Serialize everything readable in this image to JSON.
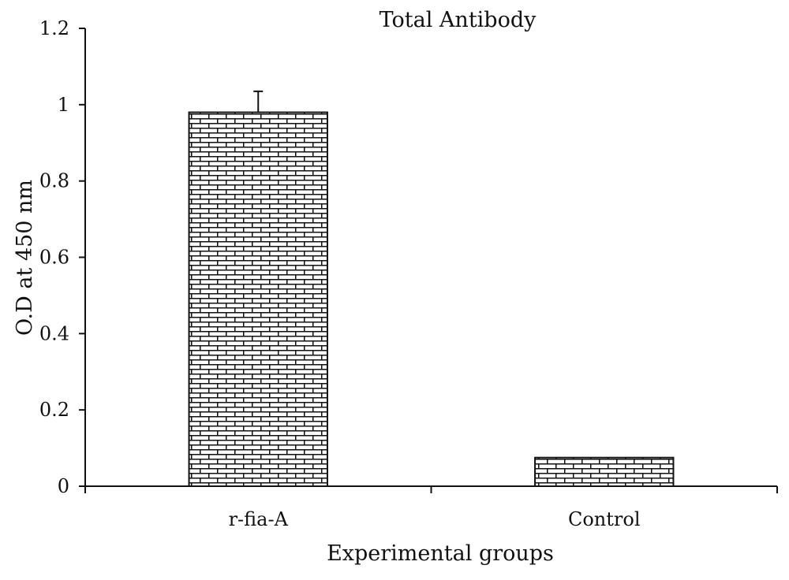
{
  "chart_data": {
    "type": "bar",
    "title": "Total Antibody",
    "xlabel": "Experimental groups",
    "ylabel": "O.D at 450 nm",
    "categories": [
      "r-fia-A",
      "Control"
    ],
    "values": [
      0.98,
      0.075
    ],
    "error_bars": [
      0.055,
      null
    ],
    "ylim": [
      0,
      1.2
    ],
    "yticks": [
      "0",
      "0.2",
      "0.4",
      "0.6",
      "0.8",
      "1",
      "1.2"
    ],
    "grid": false,
    "legend": "none",
    "bar_pattern": "brick",
    "colors": {
      "bar_fill": "#ffffff",
      "bar_stroke": "#111111",
      "axis": "#111111"
    }
  }
}
